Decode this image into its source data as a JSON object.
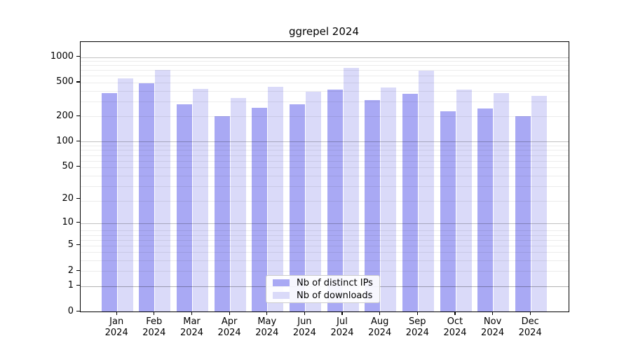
{
  "title": "ggrepel 2024",
  "legend": {
    "position": "lower center",
    "items": [
      {
        "label": "Nb of distinct IPs",
        "color": "#a9a9f4"
      },
      {
        "label": "Nb of downloads",
        "color": "#dadaf9"
      }
    ]
  },
  "chart_data": {
    "type": "bar",
    "title": "ggrepel 2024",
    "xlabel": "",
    "ylabel": "",
    "y_scale": "log1p",
    "grid": true,
    "legend_position": "lower center",
    "categories": [
      "Jan 2024",
      "Feb 2024",
      "Mar 2024",
      "Apr 2024",
      "May 2024",
      "Jun 2024",
      "Jul 2024",
      "Aug 2024",
      "Sep 2024",
      "Oct 2024",
      "Nov 2024",
      "Dec 2024"
    ],
    "series": [
      {
        "name": "Nb of distinct IPs",
        "color": "#a9a9f4",
        "values": [
          377,
          487,
          275,
          200,
          250,
          275,
          410,
          309,
          366,
          227,
          247,
          201
        ]
      },
      {
        "name": "Nb of downloads",
        "color": "#dadaf9",
        "values": [
          563,
          708,
          421,
          329,
          448,
          388,
          749,
          440,
          694,
          412,
          375,
          350
        ]
      }
    ],
    "yticks": [
      0,
      1,
      2,
      5,
      10,
      20,
      50,
      100,
      200,
      500,
      1000
    ],
    "ylim": [
      0,
      1500
    ]
  },
  "colors": {
    "bar_ips": "#a9a9f4",
    "bar_downloads": "#dadaf9",
    "grid_major": "#c2c2c2",
    "grid_minor": "#e8e8e8",
    "axis": "#000000",
    "background": "#ffffff"
  }
}
